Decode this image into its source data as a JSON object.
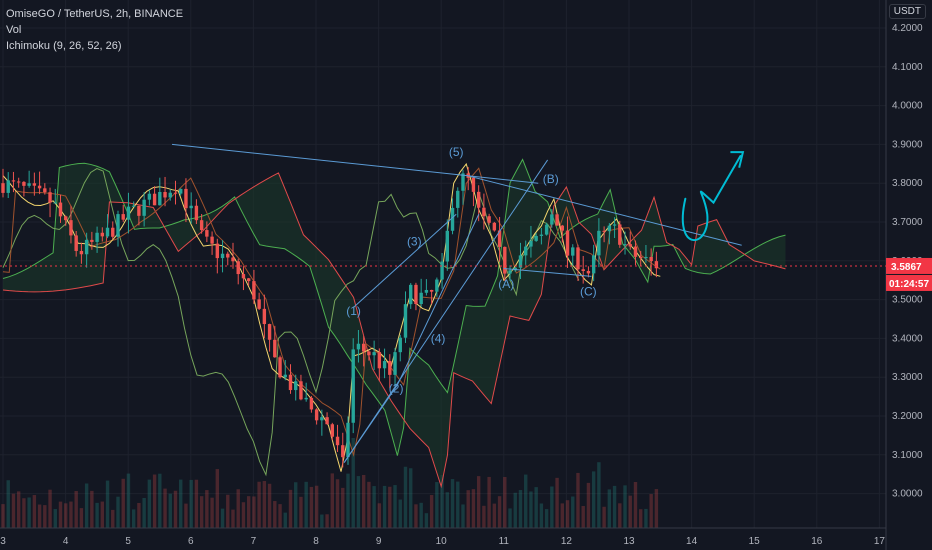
{
  "header": {
    "symbol": "OmiseGO / TetherUS, 2h, BINANCE",
    "vol_label": "Vol",
    "ichimoku_label": "Ichimoku (9, 26, 52, 26)",
    "currency": "USDT"
  },
  "price_tag": {
    "price": "3.5867",
    "countdown": "01:24:57",
    "color": "#f23645"
  },
  "colors": {
    "up": "#26a69a",
    "down": "#ef5350",
    "tenkan": "#f5d76e",
    "kijun": "#a0522d",
    "span_a": "#4caf50",
    "span_b": "#e04a4a",
    "lagging": "#76a55b",
    "drawing": "#5b9bd5",
    "arrow": "#00bcd4",
    "cloud_green": "#1b3a2a",
    "cloud_red": "#4a1f25"
  },
  "chart_data": {
    "type": "candlestick",
    "y_ticks": [
      "4.2000",
      "4.1000",
      "4.0000",
      "3.9000",
      "3.8000",
      "3.7000",
      "3.6000",
      "3.5000",
      "3.4000",
      "3.3000",
      "3.2000",
      "3.1000",
      "3.0000"
    ],
    "x_ticks": [
      "3",
      "4",
      "5",
      "6",
      "7",
      "8",
      "9",
      "10",
      "11",
      "12",
      "13",
      "14",
      "15",
      "16",
      "17"
    ],
    "ylim": [
      2.94,
      4.25
    ],
    "wave_labels": [
      {
        "text": "(1)",
        "x": 8.6,
        "y": 3.46
      },
      {
        "text": "(2)",
        "x": 9.28,
        "y": 3.26
      },
      {
        "text": "(3)",
        "x": 9.57,
        "y": 3.64
      },
      {
        "text": "(4)",
        "x": 9.95,
        "y": 3.39
      },
      {
        "text": "(5)",
        "x": 10.24,
        "y": 3.87
      },
      {
        "text": "(A)",
        "x": 11.04,
        "y": 3.53
      },
      {
        "text": "(B)",
        "x": 11.75,
        "y": 3.8
      },
      {
        "text": "(C)",
        "x": 12.35,
        "y": 3.51
      }
    ],
    "last_price": 3.5867
  }
}
